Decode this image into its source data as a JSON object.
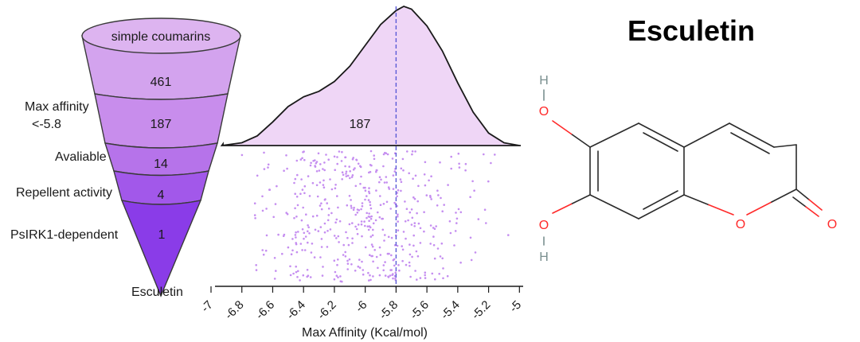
{
  "funnel": {
    "top_label": "simple coumarins",
    "levels": [
      {
        "count": "461",
        "side_label": ""
      },
      {
        "count": "187",
        "side_label_line1": "Max affinity",
        "side_label_line2": "<-5.8"
      },
      {
        "count": "14",
        "side_label": "Avaliable"
      },
      {
        "count": "4",
        "side_label": "Repellent activity"
      },
      {
        "count": "1",
        "side_label": "PsIRK1-dependent"
      }
    ],
    "bottom_label": "Esculetin",
    "colors": [
      "#ddb4f0",
      "#d3a3ee",
      "#c88dec",
      "#b673ea",
      "#a258ea",
      "#8a3ce8"
    ]
  },
  "chart_data": {
    "type": "scatter",
    "density_label": "187",
    "xlabel": "Max Affinity (Kcal/mol)",
    "xlim": [
      -7.0,
      -4.95
    ],
    "ticks": [
      "-7",
      "-6.8",
      "-6.6",
      "-6.4",
      "-6.2",
      "-6",
      "-5.8",
      "-5.6",
      "-5.4",
      "-5.2",
      "-5"
    ],
    "tick_values": [
      -7,
      -6.8,
      -6.6,
      -6.4,
      -6.2,
      -6,
      -5.8,
      -5.6,
      -5.4,
      -5.2,
      -5
    ],
    "threshold": -5.8,
    "density_curve": [
      [
        -6.93,
        0.0
      ],
      [
        -6.8,
        0.02
      ],
      [
        -6.7,
        0.07
      ],
      [
        -6.6,
        0.17
      ],
      [
        -6.5,
        0.28
      ],
      [
        -6.4,
        0.35
      ],
      [
        -6.3,
        0.39
      ],
      [
        -6.2,
        0.46
      ],
      [
        -6.1,
        0.57
      ],
      [
        -6.0,
        0.72
      ],
      [
        -5.9,
        0.87
      ],
      [
        -5.8,
        0.97
      ],
      [
        -5.75,
        1.0
      ],
      [
        -5.7,
        0.98
      ],
      [
        -5.6,
        0.86
      ],
      [
        -5.5,
        0.68
      ],
      [
        -5.4,
        0.45
      ],
      [
        -5.3,
        0.24
      ],
      [
        -5.2,
        0.09
      ],
      [
        -5.1,
        0.02
      ],
      [
        -5.0,
        0.0
      ]
    ],
    "point_color": "#c58ef0",
    "fill_color": "#efd6f6",
    "line_color": "#5b5bd6"
  },
  "molecule": {
    "title": "Esculetin",
    "atoms": {
      "h_top": "H",
      "o_top": "O",
      "o_bottom": "O",
      "h_bottom": "H",
      "o_ring": "O",
      "o_carbonyl": "O"
    },
    "colors": {
      "bond": "#2b2b2b",
      "oxygen": "#ff2a2a",
      "hydrogen": "#7a8f8f"
    }
  }
}
